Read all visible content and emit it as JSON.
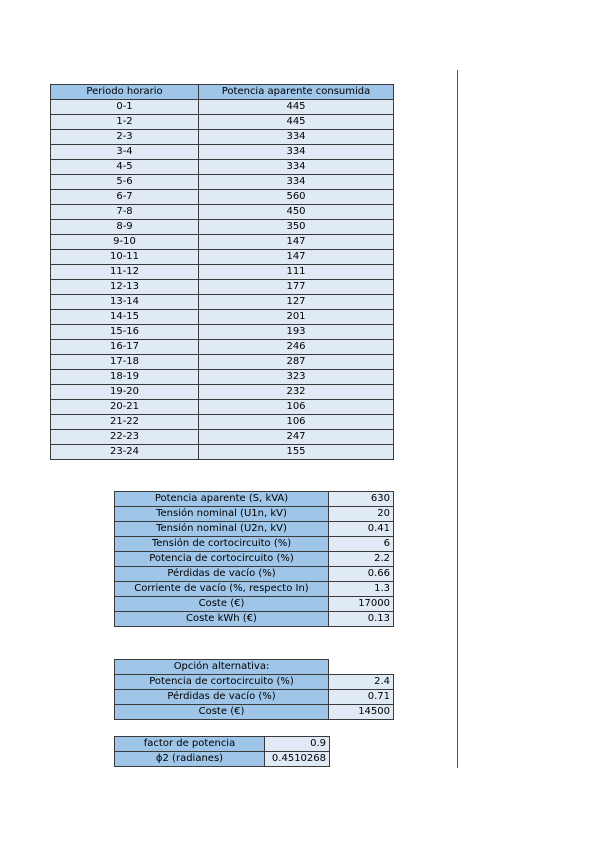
{
  "hourly": {
    "headers": [
      "Periodo horario",
      "Potencia aparente consumida"
    ],
    "rows": [
      [
        "0-1",
        "445"
      ],
      [
        "1-2",
        "445"
      ],
      [
        "2-3",
        "334"
      ],
      [
        "3-4",
        "334"
      ],
      [
        "4-5",
        "334"
      ],
      [
        "5-6",
        "334"
      ],
      [
        "6-7",
        "560"
      ],
      [
        "7-8",
        "450"
      ],
      [
        "8-9",
        "350"
      ],
      [
        "9-10",
        "147"
      ],
      [
        "10-11",
        "147"
      ],
      [
        "11-12",
        "111"
      ],
      [
        "12-13",
        "177"
      ],
      [
        "13-14",
        "127"
      ],
      [
        "14-15",
        "201"
      ],
      [
        "15-16",
        "193"
      ],
      [
        "16-17",
        "246"
      ],
      [
        "17-18",
        "287"
      ],
      [
        "18-19",
        "323"
      ],
      [
        "19-20",
        "232"
      ],
      [
        "20-21",
        "106"
      ],
      [
        "21-22",
        "106"
      ],
      [
        "22-23",
        "247"
      ],
      [
        "23-24",
        "155"
      ]
    ]
  },
  "params": [
    [
      "Potencia aparente (S, kVA)",
      "630"
    ],
    [
      "Tensión nominal (U1n, kV)",
      "20"
    ],
    [
      "Tensión nominal (U2n, kV)",
      "0.41"
    ],
    [
      "Tensión de cortocircuito (%)",
      "6"
    ],
    [
      "Potencia de cortocircuito (%)",
      "2.2"
    ],
    [
      "Pérdidas de vacío (%)",
      "0.66"
    ],
    [
      "Corriente de vacío (%, respecto In)",
      "1.3"
    ],
    [
      "Coste (€)",
      "17000"
    ],
    [
      "Coste kWh (€)",
      "0.13"
    ]
  ],
  "alternative": {
    "title": "Opción alternativa:",
    "rows": [
      [
        "Potencia de cortocircuito (%)",
        "2.4"
      ],
      [
        "Pérdidas de vacío (%)",
        "0.71"
      ],
      [
        "Coste (€)",
        "14500"
      ]
    ]
  },
  "power_factor": [
    [
      "factor de potencia",
      "0.9"
    ],
    [
      "ϕ2 (radianes)",
      "0.4510268"
    ]
  ]
}
